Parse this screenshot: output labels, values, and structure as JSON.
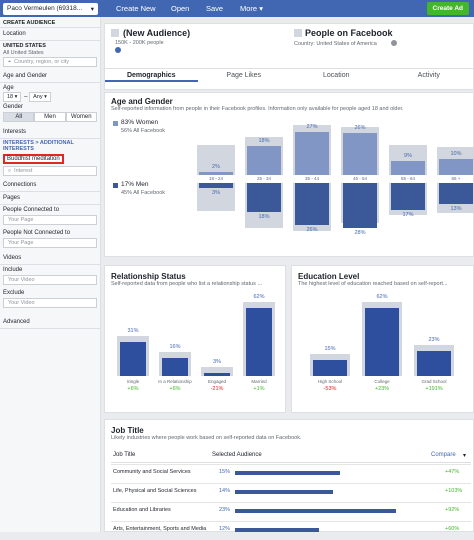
{
  "topbar": {
    "account": "Paco Vermeulen (69318...",
    "create_new": "Create New",
    "open": "Open",
    "save": "Save",
    "more": "More",
    "create_ad": "Create Ad"
  },
  "sidebar": {
    "create_audience": "CREATE AUDIENCE",
    "location": "Location",
    "country_label": "UNITED STATES",
    "country_value": "All United States",
    "location_placeholder": "Country, region, or city",
    "age_gender": "Age and Gender",
    "age_label": "Age",
    "age_from": "18",
    "age_to": "Any",
    "gender_label": "Gender",
    "genders": [
      "All",
      "Men",
      "Women"
    ],
    "interests": "Interests",
    "interests_path": "INTERESTS > ADDITIONAL INTERESTS",
    "interest_value": "Buddhist meditation",
    "interest_placeholder": "Interest",
    "connections": "Connections",
    "pages": "Pages",
    "people_connected": "People Connected to",
    "your_page": "Your Page",
    "people_not_connected": "People Not Connected to",
    "videos": "Videos",
    "include": "Include",
    "exclude": "Exclude",
    "your_video": "Your Video",
    "advanced": "Advanced"
  },
  "header": {
    "audience_name": "(New Audience)",
    "audience_size": "150K - 200K people",
    "right_title": "People on Facebook",
    "country": "Country: United States of America"
  },
  "tabs": [
    "Demographics",
    "Page Likes",
    "Location",
    "Activity"
  ],
  "age_gender": {
    "title": "Age and Gender",
    "desc": "Self-reported information from people in their Facebook profiles. Information only available for people aged 18 and older.",
    "women_pct": "83% Women",
    "women_all": "56% All Facebook",
    "men_pct": "17% Men",
    "men_all": "45% All Facebook",
    "colors": {
      "women": "#8196c4",
      "men": "#3b5998",
      "bg": "#d2d6de"
    }
  },
  "chart_data": [
    {
      "type": "bar",
      "title": "Age and Gender",
      "categories": [
        "18 - 24",
        "25 - 34",
        "35 - 44",
        "45 - 54",
        "55 - 64",
        "65 +"
      ],
      "series": [
        {
          "name": "83% Women",
          "values": [
            2,
            18,
            27,
            26,
            9,
            10
          ]
        },
        {
          "name": "17% Men",
          "values": [
            3,
            18,
            26,
            28,
            17,
            13
          ]
        }
      ]
    },
    {
      "type": "bar",
      "title": "Relationship Status",
      "categories": [
        "Single",
        "In a Relationship",
        "Engaged",
        "Married"
      ],
      "values": [
        31,
        16,
        3,
        62
      ],
      "deltas": [
        "+6%",
        "+6%",
        "-21%",
        "+1%"
      ]
    },
    {
      "type": "bar",
      "title": "Education Level",
      "categories": [
        "High School",
        "College",
        "Grad School"
      ],
      "values": [
        15,
        62,
        23
      ],
      "deltas": [
        "-53%",
        "+23%",
        "+191%"
      ]
    }
  ],
  "relationship": {
    "title": "Relationship Status",
    "desc": "Self-reported data from people who list a relationship status ..."
  },
  "education": {
    "title": "Education Level",
    "desc": "The highest level of education reached based on self-report..."
  },
  "job": {
    "title": "Job Title",
    "desc": "Likely industries where people work based on self-reported data on Facebook.",
    "col1": "Job Title",
    "col2": "Selected Audience",
    "col3": "Compare",
    "rows": [
      {
        "name": "Community and Social Services",
        "pct": "15%",
        "value": 15,
        "delta": "+47%"
      },
      {
        "name": "Life, Physical and Social Sciences",
        "pct": "14%",
        "value": 14,
        "delta": "+103%"
      },
      {
        "name": "Education and Libraries",
        "pct": "23%",
        "value": 23,
        "delta": "+92%"
      },
      {
        "name": "Arts, Entertainment, Sports and Media",
        "pct": "12%",
        "value": 12,
        "delta": "+60%"
      }
    ]
  }
}
